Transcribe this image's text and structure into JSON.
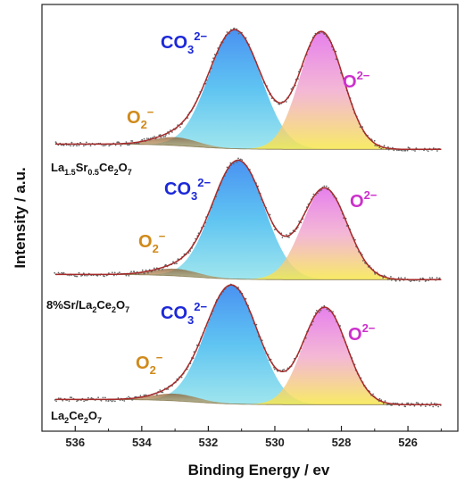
{
  "chart_data": {
    "type": "area",
    "xlabel": "Binding Energy / ev",
    "ylabel": "Intensity / a.u.",
    "x_ticks": [
      536,
      534,
      532,
      530,
      528,
      526
    ],
    "xlim": [
      537,
      524.5
    ],
    "x_reversed": true,
    "colors": {
      "O2_minus": "#8b5a2b",
      "CO3_2minus": "#2a8cf0",
      "O_2minus": "#e070e0",
      "fit_line": "#a52a2a",
      "raw_points": "#666666",
      "label_O2": "#d08a1a",
      "label_CO3": "#1c28d8",
      "label_O": "#cc30cc"
    },
    "panels": [
      {
        "sample": {
          "parts": [
            [
              "La",
              "base"
            ],
            [
              "1.5",
              "sub"
            ],
            [
              "Sr",
              "base"
            ],
            [
              "0.5",
              "sub"
            ],
            [
              "Ce",
              "base"
            ],
            [
              "2",
              "sub"
            ],
            [
              "O",
              "base"
            ],
            [
              "7",
              "sub"
            ]
          ]
        },
        "peak_labels": {
          "o2": "O",
          "o2_script": "2",
          "o2_sup": "−",
          "co3": "CO",
          "co3_sub": "3",
          "co3_sup": "2−",
          "o": "O",
          "o_sup": "2−"
        },
        "components": [
          {
            "name": "O2-",
            "center": 533.0,
            "height": 0.07,
            "fwhm": 1.6
          },
          {
            "name": "CO3 2-",
            "center": 531.2,
            "height": 1.0,
            "fwhm": 1.85
          },
          {
            "name": "O 2-",
            "center": 528.6,
            "height": 0.99,
            "fwhm": 1.55
          }
        ]
      },
      {
        "sample": {
          "parts": [
            [
              "8%Sr/La",
              "base"
            ],
            [
              "2",
              "sub"
            ],
            [
              "Ce",
              "base"
            ],
            [
              "2",
              "sub"
            ],
            [
              "O",
              "base"
            ],
            [
              "7",
              "sub"
            ]
          ]
        },
        "peak_labels": {
          "o2": "O",
          "o2_script": "2",
          "o2_sup": "−",
          "co3": "CO",
          "co3_sub": "3",
          "co3_sup": "2−",
          "o": "O",
          "o_sup": "2−"
        },
        "components": [
          {
            "name": "O2-",
            "center": 533.0,
            "height": 0.06,
            "fwhm": 1.6
          },
          {
            "name": "CO3 2-",
            "center": 531.1,
            "height": 1.0,
            "fwhm": 1.85
          },
          {
            "name": "O 2-",
            "center": 528.5,
            "height": 0.77,
            "fwhm": 1.6
          }
        ]
      },
      {
        "sample": {
          "parts": [
            [
              "La",
              "base"
            ],
            [
              "2",
              "sub"
            ],
            [
              "Ce",
              "base"
            ],
            [
              "2",
              "sub"
            ],
            [
              "O",
              "base"
            ],
            [
              "7",
              "sub"
            ]
          ]
        },
        "peak_labels": {
          "o2": "O",
          "o2_script": "2",
          "o2_sup": "−",
          "co3": "CO",
          "co3_sub": "3",
          "co3_sup": "2−",
          "o": "O",
          "o_sup": "2−"
        },
        "components": [
          {
            "name": "O2-",
            "center": 533.0,
            "height": 0.06,
            "fwhm": 1.6
          },
          {
            "name": "CO3 2-",
            "center": 531.3,
            "height": 1.0,
            "fwhm": 1.85
          },
          {
            "name": "O 2-",
            "center": 528.5,
            "height": 0.82,
            "fwhm": 1.55
          }
        ]
      }
    ]
  }
}
